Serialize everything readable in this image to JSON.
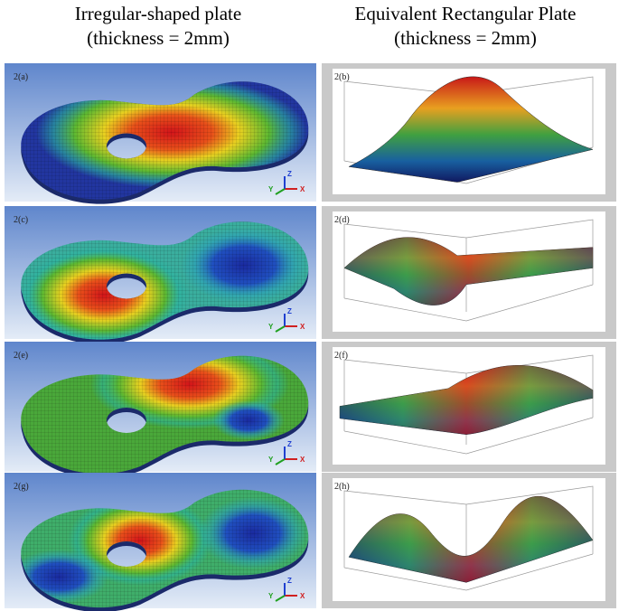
{
  "header": {
    "left": {
      "line1": "Irregular-shaped plate",
      "line2": "(thickness = 2mm)"
    },
    "right": {
      "line1": "Equivalent Rectangular Plate",
      "line2": "(thickness = 2mm)"
    }
  },
  "triad": {
    "x": "X",
    "y": "Y",
    "z": "Z"
  },
  "panels": [
    {
      "label": "2(a)"
    },
    {
      "label": "2(b)"
    },
    {
      "label": "2(c)"
    },
    {
      "label": "2(d)"
    },
    {
      "label": "2(e)"
    },
    {
      "label": "2(f)"
    },
    {
      "label": "2(g)"
    },
    {
      "label": "2(h)"
    }
  ]
}
